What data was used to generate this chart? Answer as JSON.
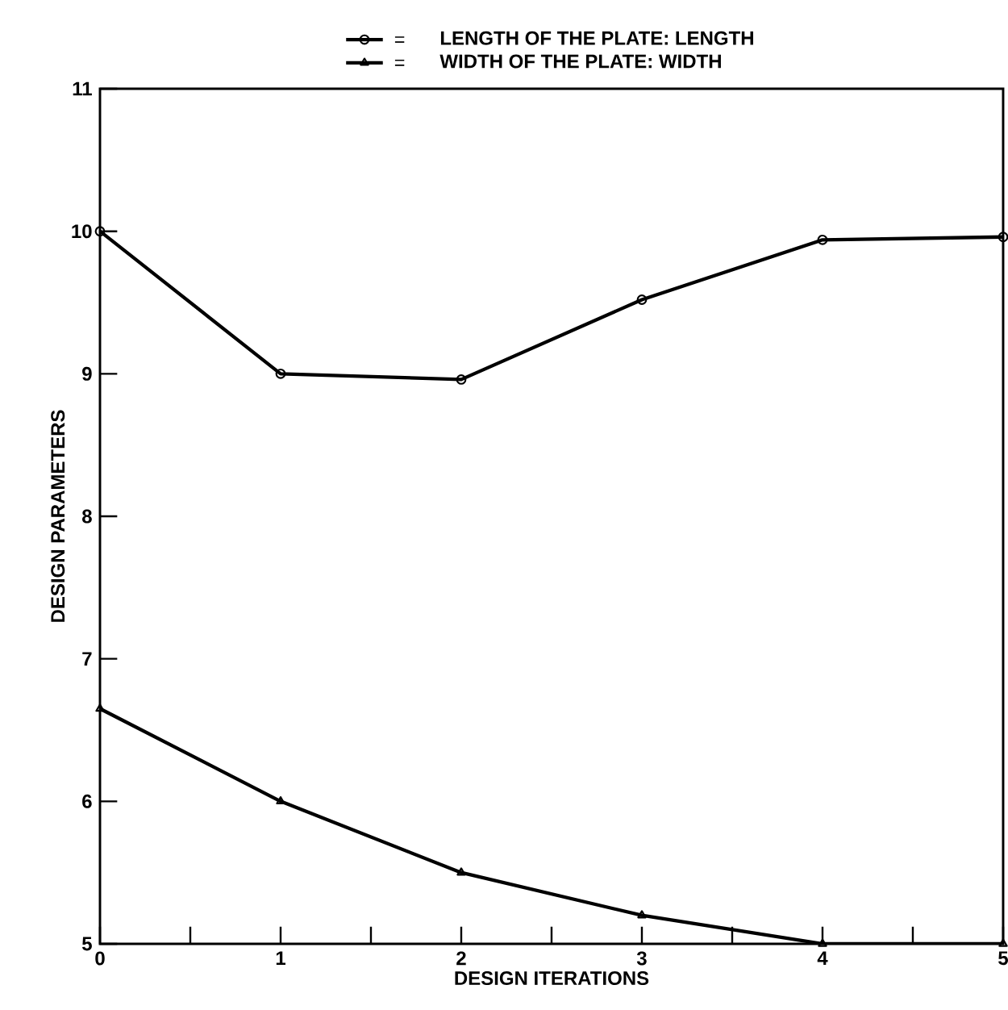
{
  "chart_data": {
    "type": "line",
    "xlabel": "DESIGN ITERATIONS",
    "ylabel": "DESIGN PARAMETERS",
    "x": [
      0,
      1,
      2,
      3,
      4,
      5
    ],
    "series": [
      {
        "name": "LENGTH OF THE PLATE: LENGTH",
        "color": "#000000",
        "marker": "circle",
        "values": [
          10.0,
          9.0,
          8.96,
          9.52,
          9.94,
          9.96
        ]
      },
      {
        "name": "WIDTH OF THE PLATE: WIDTH",
        "color": "#000000",
        "marker": "triangle",
        "values": [
          6.65,
          6.0,
          5.5,
          5.2,
          5.0,
          5.0
        ]
      }
    ],
    "xlim": [
      0,
      5
    ],
    "ylim": [
      5,
      11
    ],
    "xticks": [
      0,
      {
        "value": 0.5,
        "label": null
      },
      1,
      {
        "value": 1.5,
        "label": null
      },
      2,
      {
        "value": 2.5,
        "label": null
      },
      3,
      {
        "value": 3.5,
        "label": null
      },
      4,
      {
        "value": 4.5,
        "label": null
      },
      5
    ],
    "yticks": [
      5,
      6,
      7,
      8,
      9,
      10,
      11
    ],
    "legend": "top",
    "grid": false,
    "line_style": "solid"
  }
}
